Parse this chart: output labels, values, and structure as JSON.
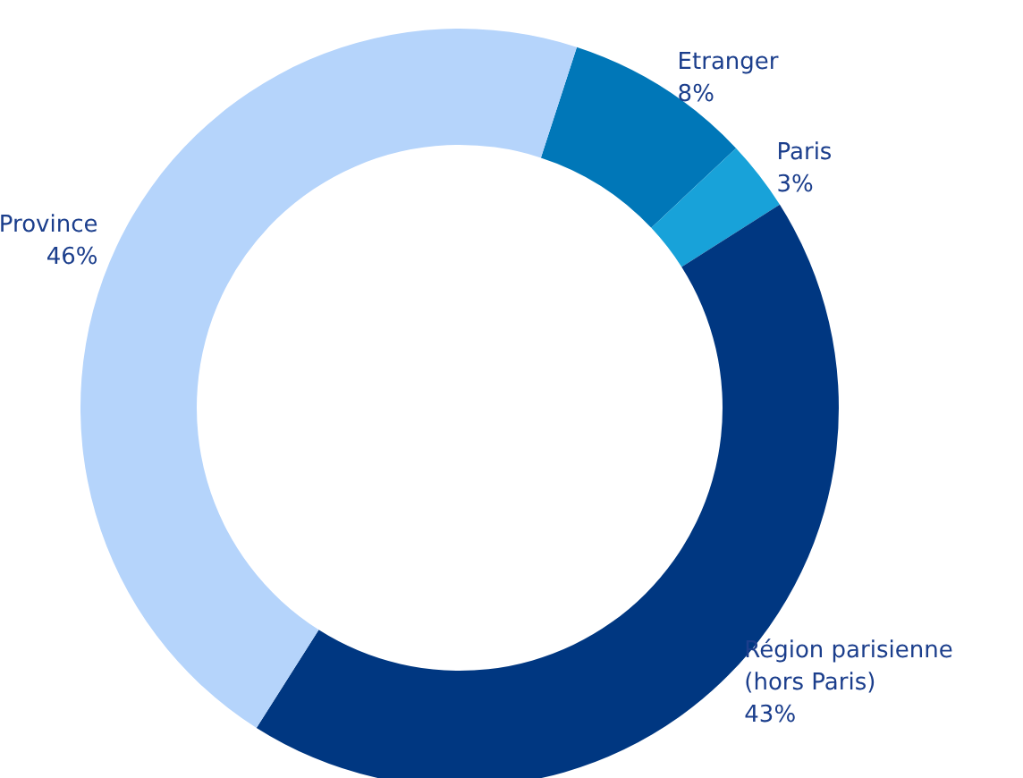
{
  "chart_data": {
    "type": "donut",
    "categories": [
      "Etranger",
      "Paris",
      "Région parisienne (hors Paris)",
      "Province"
    ],
    "values": [
      8,
      3,
      43,
      46
    ],
    "value_labels": [
      "8%",
      "3%",
      "43%",
      "46%"
    ],
    "colors": [
      "#0077b8",
      "#18a2d9",
      "#003781",
      "#b5d4fb"
    ],
    "legend": false
  }
}
